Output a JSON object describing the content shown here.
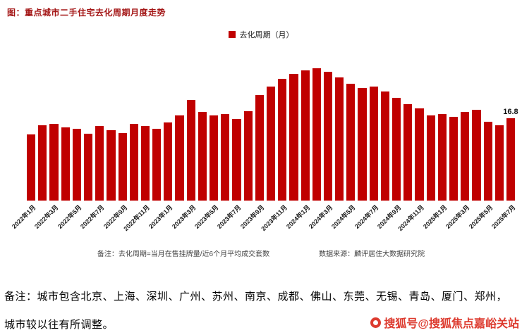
{
  "page": {
    "title": "图：重点城市二手住宅去化周期月度走势",
    "note_line1": "备注：城市包含北京、上海、深圳、广州、苏州、南京、成都、佛山、东莞、无锡、青岛、厦门、郑州，",
    "note_line2": "城市较以往有所调整。",
    "watermark": "搜狐号@搜狐焦点嘉峪关站"
  },
  "chart_data": {
    "type": "bar",
    "title": "重点城市二手住宅去化周期月度走势",
    "legend": [
      "去化周期（月）"
    ],
    "legend_position": "top-center",
    "bar_color": "#c00000",
    "grid": false,
    "ylim": [
      0,
      32
    ],
    "x_tick_step": 2,
    "x": [
      "2022年1月",
      "2022年2月",
      "2022年3月",
      "2022年4月",
      "2022年5月",
      "2022年6月",
      "2022年7月",
      "2022年8月",
      "2022年9月",
      "2022年10月",
      "2022年11月",
      "2022年12月",
      "2023年1月",
      "2023年2月",
      "2023年3月",
      "2023年4月",
      "2023年5月",
      "2023年6月",
      "2023年7月",
      "2023年8月",
      "2023年9月",
      "2023年10月",
      "2023年11月",
      "2023年12月",
      "2024年1月",
      "2024年2月",
      "2024年3月",
      "2024年4月",
      "2024年5月",
      "2024年6月",
      "2024年7月",
      "2024年8月",
      "2024年9月",
      "2024年10月",
      "2024年11月",
      "2024年12月",
      "2025年1月",
      "2025年2月",
      "2025年3月",
      "2025年4月",
      "2025年5月",
      "2025年6月",
      "2025年7月"
    ],
    "values": [
      13.5,
      15.3,
      15.6,
      15.0,
      14.6,
      13.6,
      15.2,
      14.3,
      13.8,
      15.6,
      15.2,
      14.7,
      16.0,
      17.4,
      20.5,
      18.1,
      17.4,
      17.7,
      16.7,
      18.2,
      21.5,
      23.3,
      24.8,
      25.8,
      26.6,
      27.0,
      26.2,
      25.1,
      23.8,
      23.0,
      23.3,
      22.3,
      21.0,
      19.6,
      18.8,
      17.4,
      17.7,
      17.1,
      18.1,
      18.5,
      16.1,
      15.4,
      16.8
    ],
    "last_value_label": "16.8",
    "footnote": "备注：去化周期=当月在售挂牌量/近6个月平均成交套数",
    "source": "数据来源：麟评居住大数据研究院"
  }
}
